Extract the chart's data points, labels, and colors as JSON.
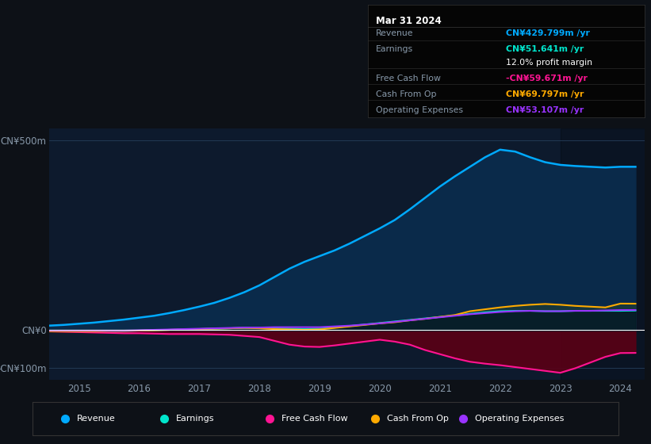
{
  "bg_color": "#0d1117",
  "plot_bg_color": "#0d1a2d",
  "grid_color": "#263f5a",
  "text_color": "#8899aa",
  "title_color": "#ffffff",
  "years": [
    2014.5,
    2014.75,
    2015.0,
    2015.25,
    2015.5,
    2015.75,
    2016.0,
    2016.25,
    2016.5,
    2016.75,
    2017.0,
    2017.25,
    2017.5,
    2017.75,
    2018.0,
    2018.25,
    2018.5,
    2018.75,
    2019.0,
    2019.25,
    2019.5,
    2019.75,
    2020.0,
    2020.25,
    2020.5,
    2020.75,
    2021.0,
    2021.25,
    2021.5,
    2021.75,
    2022.0,
    2022.25,
    2022.5,
    2022.75,
    2023.0,
    2023.25,
    2023.5,
    2023.75,
    2024.0,
    2024.25
  ],
  "revenue": [
    12,
    14,
    17,
    20,
    24,
    28,
    33,
    38,
    45,
    53,
    62,
    72,
    85,
    100,
    118,
    140,
    162,
    180,
    195,
    210,
    228,
    248,
    268,
    290,
    318,
    348,
    378,
    405,
    430,
    455,
    475,
    470,
    455,
    442,
    435,
    432,
    430,
    428,
    430,
    430
  ],
  "earnings": [
    -3,
    -3,
    -3,
    -3,
    -2,
    -2,
    -1,
    0,
    1,
    2,
    3,
    4,
    5,
    6,
    6,
    5,
    4,
    3,
    4,
    7,
    11,
    15,
    19,
    23,
    27,
    31,
    35,
    39,
    43,
    47,
    50,
    51,
    51,
    50,
    50,
    51,
    51,
    51,
    51,
    51.641
  ],
  "free_cash_flow": [
    -3,
    -4,
    -5,
    -6,
    -7,
    -8,
    -8,
    -9,
    -10,
    -10,
    -10,
    -11,
    -12,
    -15,
    -18,
    -28,
    -38,
    -43,
    -44,
    -40,
    -35,
    -30,
    -25,
    -30,
    -38,
    -52,
    -63,
    -74,
    -83,
    -88,
    -92,
    -97,
    -102,
    -107,
    -112,
    -100,
    -85,
    -70,
    -60,
    -59.671
  ],
  "cash_from_op": [
    -3,
    -3,
    -3,
    -3,
    -2,
    -2,
    -1,
    0,
    1,
    2,
    3,
    4,
    5,
    6,
    5,
    3,
    2,
    1,
    2,
    6,
    10,
    14,
    18,
    21,
    26,
    30,
    35,
    40,
    50,
    55,
    60,
    64,
    67,
    69,
    67,
    64,
    62,
    60,
    70,
    69.797
  ],
  "operating_expenses": [
    -1,
    -1,
    -1,
    -1,
    -1,
    -1,
    0,
    1,
    2,
    3,
    4,
    5,
    6,
    7,
    7,
    8,
    8,
    8,
    8,
    10,
    12,
    15,
    18,
    22,
    26,
    30,
    34,
    38,
    42,
    45,
    48,
    50,
    51,
    50,
    50,
    51,
    51,
    52,
    53,
    53.107
  ],
  "revenue_color": "#00aaff",
  "earnings_color": "#00e5cc",
  "fcf_color": "#ff1493",
  "cashop_color": "#ffaa00",
  "opex_color": "#9933ff",
  "revenue_fill": "#0a2a4a",
  "fcf_fill_neg": "#5a0015",
  "ylim": [
    -130,
    530
  ],
  "yticks": [
    -100,
    0,
    500
  ],
  "ytick_labels": [
    "-CN¥100m",
    "CN¥0",
    "CN¥500m"
  ],
  "xlim": [
    2014.5,
    2024.4
  ],
  "xlabel_ticks": [
    2015,
    2016,
    2017,
    2018,
    2019,
    2020,
    2021,
    2022,
    2023,
    2024
  ],
  "vspan_start": 2023.0,
  "info_box": {
    "date": "Mar 31 2024",
    "revenue_label": "Revenue",
    "revenue_val": "CN¥429.799m",
    "earnings_label": "Earnings",
    "earnings_val": "CN¥51.641m",
    "profit_margin": "12.0%",
    "fcf_label": "Free Cash Flow",
    "fcf_val": "-CN¥59.671m",
    "cashop_label": "Cash From Op",
    "cashop_val": "CN¥69.797m",
    "opex_label": "Operating Expenses",
    "opex_val": "CN¥53.107m"
  },
  "legend_items": [
    {
      "label": "Revenue",
      "color": "#00aaff"
    },
    {
      "label": "Earnings",
      "color": "#00e5cc"
    },
    {
      "label": "Free Cash Flow",
      "color": "#ff1493"
    },
    {
      "label": "Cash From Op",
      "color": "#ffaa00"
    },
    {
      "label": "Operating Expenses",
      "color": "#9933ff"
    }
  ]
}
